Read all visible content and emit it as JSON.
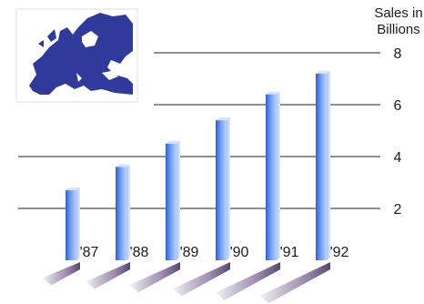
{
  "chart_data": {
    "type": "bar",
    "categories": [
      "'87",
      "'88",
      "'89",
      "'90",
      "'91",
      "'92"
    ],
    "values": [
      2.7,
      3.6,
      4.5,
      5.4,
      6.4,
      7.2
    ],
    "ylabel_lines": [
      "Sales in",
      "Billions"
    ],
    "y_ticks": [
      2,
      4,
      6,
      8
    ],
    "ylim": [
      0,
      8
    ],
    "grid": true,
    "bar_color": "#4f7fd8",
    "inset_map": "map-of-europe"
  }
}
